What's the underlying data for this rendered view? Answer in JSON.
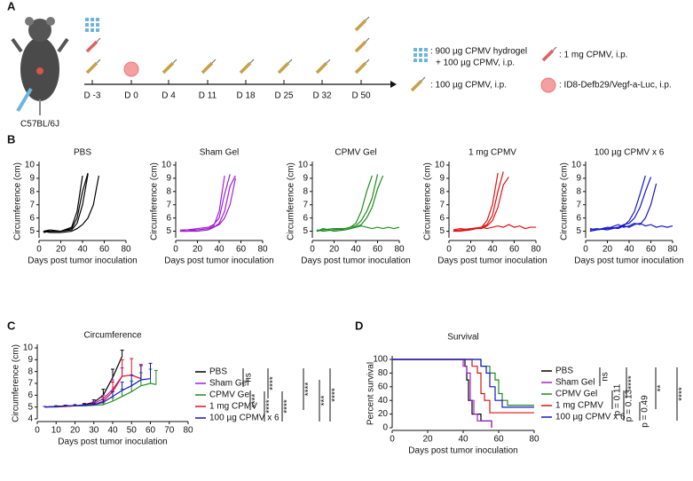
{
  "panel_labels": [
    "A",
    "B",
    "C",
    "D"
  ],
  "timeline": {
    "strain": "C57BL/6J",
    "days": [
      "D -3",
      "D 0",
      "D 4",
      "D 11",
      "D 18",
      "D 25",
      "D 32",
      "D 50"
    ],
    "legend": [
      ": 900 µg CPMV hydrogel",
      "+ 100 µg CPMV, i.p.",
      ": 100 µg CPMV, i.p.",
      ": 1 mg CPMV, i.p.",
      ": ID8-Defb29/Vegf-a-Luc, i.p."
    ]
  },
  "chart_data": [
    {
      "type": "line",
      "title": "PBS",
      "x_label": "Days post tumor inoculation",
      "y_label": "Circumference (cm)",
      "x": [
        4,
        10,
        20,
        30,
        35,
        40,
        45,
        50,
        55,
        60,
        65,
        70,
        75,
        80
      ],
      "xlim": [
        0,
        80
      ],
      "xticks": [
        0,
        20,
        40,
        60,
        80
      ],
      "ylim": [
        4.5,
        10
      ],
      "yticks": [
        5,
        6,
        7,
        8,
        9,
        10
      ],
      "series": [
        {
          "color": "#000000",
          "values": [
            5,
            5,
            5,
            5.1,
            5.6,
            7,
            9.3,
            null,
            null,
            null,
            null,
            null,
            null,
            null
          ]
        },
        {
          "color": "#000000",
          "values": [
            4.9,
            5,
            5,
            5.2,
            6,
            8,
            9.4,
            null,
            null,
            null,
            null,
            null,
            null,
            null
          ]
        },
        {
          "color": "#000000",
          "values": [
            5,
            5.1,
            5,
            5.3,
            6.5,
            9.2,
            null,
            null,
            null,
            null,
            null,
            null,
            null,
            null
          ]
        },
        {
          "color": "#000000",
          "values": [
            5,
            4.9,
            4.9,
            5,
            5.2,
            5.5,
            6,
            7,
            9.2,
            null,
            null,
            null,
            null,
            null
          ]
        }
      ]
    },
    {
      "type": "line",
      "title": "Sham Gel",
      "x_label": "Days post tumor inoculation",
      "y_label": "Circumference (cm)",
      "x": [
        4,
        10,
        20,
        30,
        35,
        40,
        45,
        50,
        55,
        60,
        65,
        70,
        75,
        80
      ],
      "xlim": [
        0,
        80
      ],
      "xticks": [
        0,
        20,
        40,
        60,
        80
      ],
      "ylim": [
        4.5,
        10
      ],
      "yticks": [
        5,
        6,
        7,
        8,
        9,
        10
      ],
      "series": [
        {
          "color": "#a020d0",
          "values": [
            5,
            5,
            5.1,
            5.2,
            5.4,
            6.5,
            9.2,
            null,
            null,
            null,
            null,
            null,
            null,
            null
          ]
        },
        {
          "color": "#a020d0",
          "values": [
            5.1,
            5.1,
            5.2,
            5.3,
            5.5,
            6,
            7.8,
            9.3,
            null,
            null,
            null,
            null,
            null,
            null
          ]
        },
        {
          "color": "#a020d0",
          "values": [
            5,
            5,
            5,
            5.1,
            5.3,
            5.6,
            6.5,
            8.4,
            9.2,
            null,
            null,
            null,
            null,
            null
          ]
        },
        {
          "color": "#a020d0",
          "values": [
            5,
            5.1,
            5.1,
            5.2,
            5.3,
            5.5,
            6,
            7,
            9,
            null,
            null,
            null,
            null,
            null
          ]
        }
      ]
    },
    {
      "type": "line",
      "title": "CPMV Gel",
      "x_label": "Days post tumor inoculation",
      "y_label": "Circumference (cm)",
      "x": [
        4,
        10,
        20,
        30,
        35,
        40,
        45,
        50,
        55,
        60,
        65,
        70,
        75,
        80
      ],
      "xlim": [
        0,
        80
      ],
      "xticks": [
        0,
        20,
        40,
        60,
        80
      ],
      "ylim": [
        4.5,
        10
      ],
      "yticks": [
        5,
        6,
        7,
        8,
        9,
        10
      ],
      "series": [
        {
          "color": "#1e8c1e",
          "values": [
            5,
            5.1,
            5.2,
            5.2,
            5.3,
            5.6,
            6.5,
            8,
            9.2,
            null,
            null,
            null,
            null,
            null
          ]
        },
        {
          "color": "#1e8c1e",
          "values": [
            5.1,
            5,
            5.1,
            5.2,
            5.3,
            5.4,
            5.8,
            6.5,
            7.5,
            9.3,
            null,
            null,
            null,
            null
          ]
        },
        {
          "color": "#1e8c1e",
          "values": [
            5,
            5.2,
            5,
            5.1,
            5.2,
            5.3,
            5.5,
            6,
            6.8,
            8.2,
            9.2,
            null,
            null,
            null
          ]
        },
        {
          "color": "#1e8c1e",
          "values": [
            5,
            5.1,
            5.2,
            5.1,
            5.2,
            5.3,
            5.4,
            5.3,
            5.2,
            5.3,
            5.2,
            5.3,
            5.2,
            5.3
          ]
        }
      ]
    },
    {
      "type": "line",
      "title": "1 mg CPMV",
      "x_label": "Days post tumor inoculation",
      "y_label": "Circumference (cm)",
      "x": [
        4,
        10,
        20,
        30,
        35,
        40,
        45,
        50,
        55,
        60,
        65,
        70,
        75,
        80
      ],
      "xlim": [
        0,
        80
      ],
      "xticks": [
        0,
        20,
        40,
        60,
        80
      ],
      "ylim": [
        4.5,
        10
      ],
      "yticks": [
        5,
        6,
        7,
        8,
        9,
        10
      ],
      "series": [
        {
          "color": "#e01010",
          "values": [
            5,
            5,
            5.1,
            5.3,
            5.8,
            7,
            9.4,
            null,
            null,
            null,
            null,
            null,
            null,
            null
          ]
        },
        {
          "color": "#e01010",
          "values": [
            5.1,
            5,
            5.2,
            5.3,
            5.5,
            6.2,
            8,
            9.5,
            null,
            null,
            null,
            null,
            null,
            null
          ]
        },
        {
          "color": "#e01010",
          "values": [
            5,
            5.1,
            5.2,
            5.2,
            5.4,
            5.8,
            6.8,
            8.5,
            9.1,
            null,
            null,
            null,
            null,
            null
          ]
        },
        {
          "color": "#e01010",
          "values": [
            5.1,
            5.2,
            5.1,
            5.3,
            5.2,
            5.3,
            5.4,
            5.3,
            5.5,
            5.3,
            5.4,
            5.2,
            5.3,
            5.3
          ]
        }
      ]
    },
    {
      "type": "line",
      "title": "100 µg CPMV x 6",
      "x_label": "Days post tumor inoculation",
      "y_label": "Circumference (cm)",
      "x": [
        4,
        10,
        20,
        30,
        35,
        40,
        45,
        50,
        55,
        60,
        65,
        70,
        75,
        80
      ],
      "xlim": [
        0,
        80
      ],
      "xticks": [
        0,
        20,
        40,
        60,
        80
      ],
      "ylim": [
        4.5,
        10
      ],
      "yticks": [
        5,
        6,
        7,
        8,
        9,
        10
      ],
      "series": [
        {
          "color": "#1515d0",
          "values": [
            5,
            5.1,
            5.2,
            5.3,
            5.4,
            5.8,
            6.5,
            7.8,
            9.2,
            null,
            null,
            null,
            null,
            null
          ]
        },
        {
          "color": "#1515d0",
          "values": [
            5.1,
            5.2,
            5.1,
            5.3,
            5.5,
            5.6,
            6,
            6.8,
            8,
            9.1,
            null,
            null,
            null,
            null
          ]
        },
        {
          "color": "#1515d0",
          "values": [
            5,
            5.1,
            5.2,
            5.5,
            5.3,
            5.4,
            5.6,
            5.5,
            6,
            7,
            8.6,
            null,
            null,
            null
          ]
        },
        {
          "color": "#1515d0",
          "values": [
            5.2,
            5.1,
            5.3,
            5.2,
            5.4,
            5.3,
            5.5,
            5.6,
            5.4,
            5.5,
            5.3,
            5.4,
            5.3,
            5.4
          ]
        }
      ]
    },
    {
      "type": "line",
      "title": "Circumference",
      "x_label": "Days post tumor inoculation",
      "y_label": "Circumference (cm)",
      "x": [
        4,
        10,
        15,
        20,
        25,
        30,
        35,
        40,
        45,
        50,
        55,
        60,
        63
      ],
      "xlim": [
        0,
        80
      ],
      "xticks": [
        0,
        10,
        20,
        30,
        40,
        50,
        60,
        70,
        80
      ],
      "ylim": [
        4,
        10
      ],
      "yticks": [
        4,
        5,
        6,
        7,
        8,
        9,
        10
      ],
      "series": [
        {
          "name": "PBS",
          "color": "#000000",
          "values": [
            5,
            5.05,
            5.1,
            5.1,
            5.2,
            5.4,
            6,
            7.5,
            9.3,
            null,
            null,
            null,
            null
          ],
          "errors": [
            0.05,
            0.05,
            0.05,
            0.1,
            0.1,
            0.2,
            0.5,
            0.7,
            0.5,
            null,
            null,
            null,
            null
          ]
        },
        {
          "name": "Sham Gel",
          "color": "#a020d0",
          "values": [
            5,
            5.05,
            5.1,
            5.1,
            5.15,
            5.3,
            5.7,
            6.5,
            7.6,
            null,
            null,
            null,
            null
          ],
          "errors": [
            0.05,
            0.05,
            0.05,
            0.05,
            0.1,
            0.15,
            0.3,
            0.8,
            0.7,
            null,
            null,
            null,
            null
          ]
        },
        {
          "name": "CPMV Gel",
          "color": "#1e8c1e",
          "values": [
            5,
            5,
            5.05,
            5.1,
            5.1,
            5.15,
            5.2,
            5.5,
            5.9,
            6.3,
            6.8,
            7,
            6.9
          ],
          "errors": [
            0.05,
            0.05,
            0.05,
            0.05,
            0.1,
            0.1,
            0.15,
            0.3,
            0.6,
            0.9,
            1.1,
            1.2,
            1.2
          ]
        },
        {
          "name": "1 mg CPMV",
          "color": "#e01010",
          "values": [
            5,
            5.05,
            5.05,
            5.1,
            5.15,
            5.2,
            5.5,
            6.3,
            7.6,
            7.7,
            7.4,
            null,
            null
          ],
          "errors": [
            0.05,
            0.05,
            0.05,
            0.05,
            0.1,
            0.15,
            0.3,
            0.8,
            1.4,
            1.4,
            1.2,
            null,
            null
          ]
        },
        {
          "name": "100 µg CPMV x 6",
          "color": "#1515d0",
          "values": [
            5,
            5.05,
            5.1,
            5.1,
            5.15,
            5.2,
            5.4,
            5.9,
            6.4,
            6.8,
            7.3,
            7.4,
            null
          ],
          "errors": [
            0.05,
            0.05,
            0.05,
            0.05,
            0.1,
            0.1,
            0.2,
            0.4,
            0.7,
            0.9,
            1.2,
            1.3,
            null
          ]
        }
      ],
      "significance": [
        "ns",
        "****",
        "****",
        "****",
        "****",
        "****",
        "***",
        "****"
      ]
    },
    {
      "type": "line",
      "step": true,
      "title": "Survival",
      "x_label": "Days post tumor inoculation",
      "y_label": "Percent survival",
      "xlim": [
        0,
        80
      ],
      "xticks": [
        0,
        20,
        40,
        60,
        80
      ],
      "ylim": [
        0,
        100
      ],
      "yticks": [
        0,
        20,
        40,
        60,
        80,
        100
      ],
      "series": [
        {
          "name": "PBS",
          "color": "#000000",
          "x": [
            0,
            41,
            42,
            43,
            45,
            50,
            56
          ],
          "values": [
            100,
            90,
            70,
            40,
            20,
            10,
            0
          ]
        },
        {
          "name": "Sham Gel",
          "color": "#a020d0",
          "x": [
            0,
            40,
            42,
            44,
            46,
            48,
            56
          ],
          "values": [
            100,
            90,
            80,
            40,
            20,
            10,
            0
          ]
        },
        {
          "name": "CPMV Gel",
          "color": "#1e8c1e",
          "x": [
            0,
            50,
            55,
            58,
            60,
            62,
            65,
            80
          ],
          "values": [
            100,
            90,
            80,
            70,
            50,
            40,
            33,
            33
          ]
        },
        {
          "name": "1 mg CPMV",
          "color": "#e01010",
          "x": [
            0,
            45,
            48,
            50,
            52,
            55,
            80
          ],
          "values": [
            100,
            90,
            80,
            50,
            40,
            22,
            22
          ]
        },
        {
          "name": "100 µg CPMV x 6",
          "color": "#1515d0",
          "x": [
            0,
            50,
            53,
            55,
            58,
            62,
            80
          ],
          "values": [
            100,
            90,
            80,
            60,
            40,
            30,
            30
          ]
        }
      ],
      "significance": [
        "ns",
        "****",
        "p = 0.11",
        "p = 0.13",
        "p = 0.49",
        "**",
        "****"
      ]
    }
  ]
}
